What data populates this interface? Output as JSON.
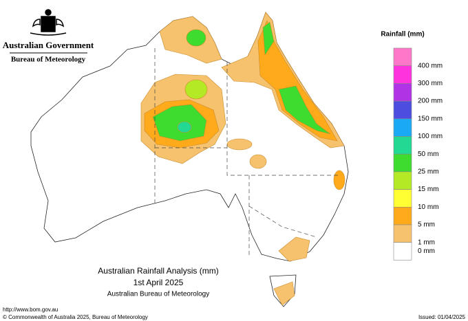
{
  "header": {
    "agency": "Australian Government",
    "bureau": "Bureau of Meteorology"
  },
  "legend": {
    "title": "Rainfall (mm)",
    "colors": [
      "#ff77c8",
      "#ff33dd",
      "#b033e6",
      "#4d4de0",
      "#1aaaf5",
      "#22d993",
      "#3ddc2e",
      "#b4ea25",
      "#ffff33",
      "#ffaa1a",
      "#f6c26e",
      "#ffffff"
    ],
    "labels": [
      "400 mm",
      "300 mm",
      "200 mm",
      "150 mm",
      "100 mm",
      "50 mm",
      "25 mm",
      "15 mm",
      "10 mm",
      "5 mm",
      "1 mm",
      "0 mm"
    ]
  },
  "map_title": {
    "line1": "Australian Rainfall Analysis (mm)",
    "line2": "1st April 2025",
    "line3": "Australian Bureau of Meteorology"
  },
  "footer": {
    "url": "http://www.bom.gov.au",
    "copyright": "© Commonwealth of Australia 2025, Bureau of Meteorology",
    "issued": "Issued: 01/04/2025"
  }
}
